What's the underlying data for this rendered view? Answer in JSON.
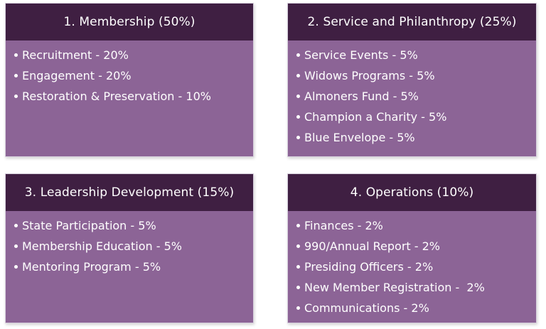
{
  "colors": {
    "header_bg": "#3f1f42",
    "body_bg": "#8c6496",
    "text": "#ffffff"
  },
  "cards": [
    {
      "title": "1. Membership (50%)",
      "items": [
        "Recruitment - 20%",
        "Engagement - 20%",
        "Restoration & Preservation - 10%"
      ]
    },
    {
      "title": "2. Service and Philanthropy (25%)",
      "items": [
        "Service Events - 5%",
        "Widows Programs - 5%",
        "Almoners Fund - 5%",
        "Champion a Charity - 5%",
        "Blue Envelope - 5%"
      ]
    },
    {
      "title": "3. Leadership Development (15%)",
      "items": [
        "State Participation - 5%",
        "Membership Education - 5%",
        "Mentoring Program - 5%"
      ]
    },
    {
      "title": "4. Operations (10%)",
      "items": [
        "Finances - 2%",
        "990/Annual Report - 2%",
        "Presiding Officers - 2%",
        "New Member Registration -  2%",
        "Communications - 2%"
      ]
    }
  ]
}
